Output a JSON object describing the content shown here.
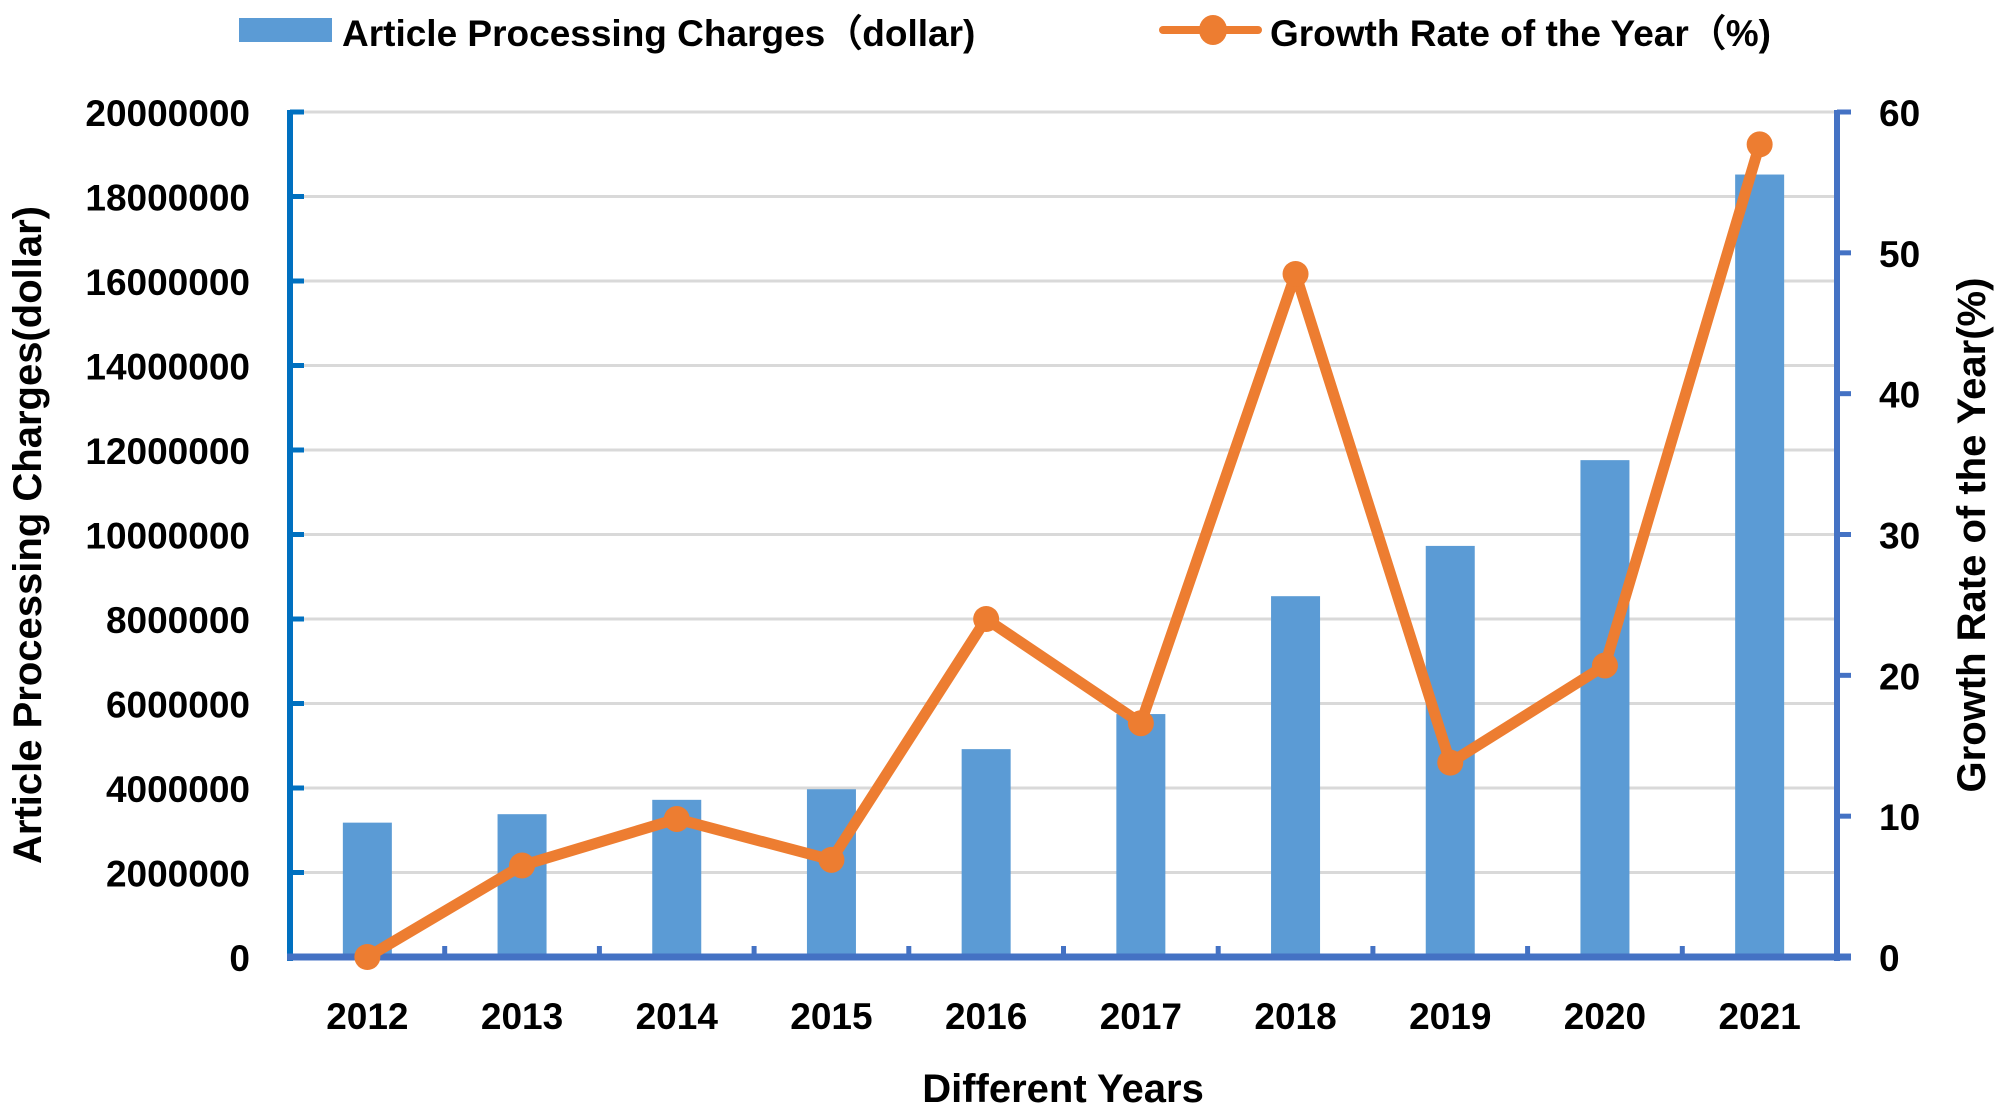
{
  "chart_data": {
    "type": "bar",
    "combo": "bar + line (dual axis)",
    "title": "",
    "categories": [
      "2012",
      "2013",
      "2014",
      "2015",
      "2016",
      "2017",
      "2018",
      "2019",
      "2020",
      "2021"
    ],
    "series": [
      {
        "name": "Article Processing Charges（dollar)",
        "type": "bar",
        "axis": "left",
        "color": "#5b9bd5",
        "values": [
          3180000,
          3380000,
          3720000,
          3970000,
          4920000,
          5750000,
          8540000,
          9730000,
          11760000,
          18520000
        ]
      },
      {
        "name": "Growth Rate of the Year（%)",
        "type": "line",
        "axis": "right",
        "color": "#ed7d31",
        "marker": "circle",
        "values": [
          0,
          6.5,
          9.8,
          6.9,
          24.0,
          16.6,
          48.5,
          13.8,
          20.7,
          57.7
        ]
      }
    ],
    "xlabel": "Different Years",
    "ylabel": "Article Processing Charges(dollar)",
    "y2label": "Growth Rate of the Year(%)",
    "ylim": [
      0,
      20000000
    ],
    "y2lim": [
      0,
      60
    ],
    "yticks": [
      "0",
      "2000000",
      "4000000",
      "6000000",
      "8000000",
      "10000000",
      "12000000",
      "14000000",
      "16000000",
      "18000000",
      "20000000"
    ],
    "y2ticks": [
      "0",
      "10",
      "20",
      "30",
      "40",
      "50",
      "60"
    ],
    "grid": true,
    "legend": "top",
    "axis_colors": {
      "left": "#0070c0",
      "right": "#4472c4",
      "bottom": "#4472c4",
      "grid": "#d9d9d9"
    }
  },
  "legend": {
    "bar_label": "Article Processing Charges（dollar)",
    "line_label": "Growth Rate of the Year（%)"
  }
}
